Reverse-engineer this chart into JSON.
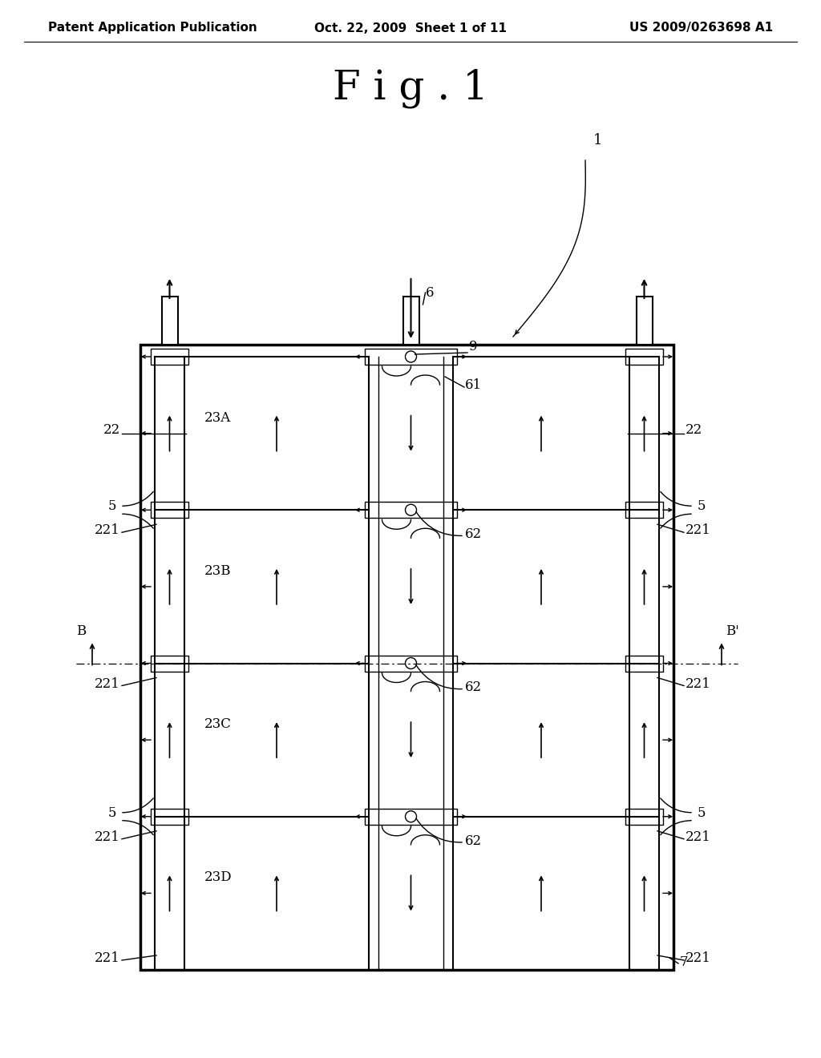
{
  "bg_color": "#ffffff",
  "line_color": "#000000",
  "header_left": "Patent Application Publication",
  "header_center": "Oct. 22, 2009  Sheet 1 of 11",
  "header_right": "US 2009/0263698 A1",
  "fig_title": "F i g . 1",
  "header_fontsize": 11,
  "title_fontsize": 36,
  "label_fontsize": 12
}
